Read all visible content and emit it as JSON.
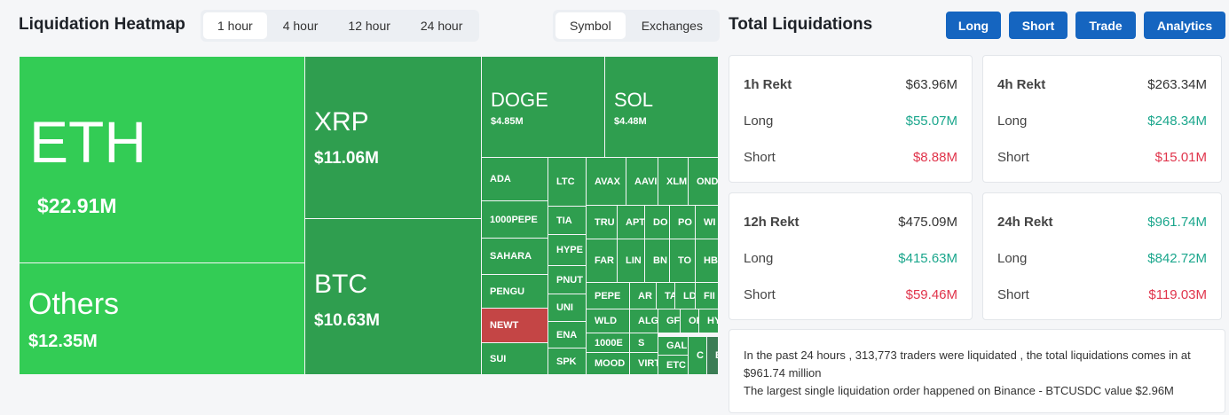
{
  "heatmap": {
    "title": "Liquidation Heatmap",
    "time_tabs": [
      "1 hour",
      "4 hour",
      "12 hour",
      "24 hour"
    ],
    "view_tabs": [
      "Symbol",
      "Exchanges"
    ],
    "tiles": [
      {
        "symbol": "ETH",
        "value": "$22.91M"
      },
      {
        "symbol": "Others",
        "value": "$12.35M"
      },
      {
        "symbol": "XRP",
        "value": "$11.06M"
      },
      {
        "symbol": "BTC",
        "value": "$10.63M"
      },
      {
        "symbol": "DOGE",
        "value": "$4.85M"
      },
      {
        "symbol": "SOL",
        "value": "$4.48M"
      },
      {
        "symbol": "ADA"
      },
      {
        "symbol": "1000PEPE"
      },
      {
        "symbol": "SAHARA"
      },
      {
        "symbol": "PENGU"
      },
      {
        "symbol": "NEWT"
      },
      {
        "symbol": "SUI"
      },
      {
        "symbol": "LTC"
      },
      {
        "symbol": "TIA"
      },
      {
        "symbol": "HYPE"
      },
      {
        "symbol": "PNUT"
      },
      {
        "symbol": "UNI"
      },
      {
        "symbol": "ENA"
      },
      {
        "symbol": "SPK"
      },
      {
        "symbol": "AVAX"
      },
      {
        "symbol": "AAVI"
      },
      {
        "symbol": "XLM"
      },
      {
        "symbol": "OND"
      },
      {
        "symbol": "TRU"
      },
      {
        "symbol": "APT"
      },
      {
        "symbol": "DO"
      },
      {
        "symbol": "PO"
      },
      {
        "symbol": "WI"
      },
      {
        "symbol": "FAR"
      },
      {
        "symbol": "LIN"
      },
      {
        "symbol": "BN"
      },
      {
        "symbol": "TO"
      },
      {
        "symbol": "HB"
      },
      {
        "symbol": "PEPE"
      },
      {
        "symbol": "AR"
      },
      {
        "symbol": "TA"
      },
      {
        "symbol": "LD"
      },
      {
        "symbol": "FII"
      },
      {
        "symbol": "WLD"
      },
      {
        "symbol": "ALG"
      },
      {
        "symbol": "GF"
      },
      {
        "symbol": "OF"
      },
      {
        "symbol": "HY"
      },
      {
        "symbol": "1000E"
      },
      {
        "symbol": "S"
      },
      {
        "symbol": "GAL"
      },
      {
        "symbol": "C"
      },
      {
        "symbol": "E"
      },
      {
        "symbol": "MOOD"
      },
      {
        "symbol": "VIRT"
      },
      {
        "symbol": "ETC"
      }
    ]
  },
  "liquidations": {
    "title": "Total Liquidations",
    "buttons": [
      "Long",
      "Short",
      "Trade",
      "Analytics"
    ],
    "cards": [
      {
        "label": "1h Rekt",
        "total": "$63.96M",
        "long_label": "Long",
        "long": "$55.07M",
        "short_label": "Short",
        "short": "$8.88M"
      },
      {
        "label": "4h Rekt",
        "total": "$263.34M",
        "long_label": "Long",
        "long": "$248.34M",
        "short_label": "Short",
        "short": "$15.01M"
      },
      {
        "label": "12h Rekt",
        "total": "$475.09M",
        "long_label": "Long",
        "long": "$415.63M",
        "short_label": "Short",
        "short": "$59.46M"
      },
      {
        "label": "24h Rekt",
        "total": "$961.74M",
        "long_label": "Long",
        "long": "$842.72M",
        "short_label": "Short",
        "short": "$119.03M"
      }
    ],
    "summary": [
      "In the past 24 hours , 313,773 traders were liquidated , the total liquidations comes in at $961.74 million",
      "The largest single liquidation order happened on Binance - BTCUSDC value $2.96M"
    ]
  }
}
